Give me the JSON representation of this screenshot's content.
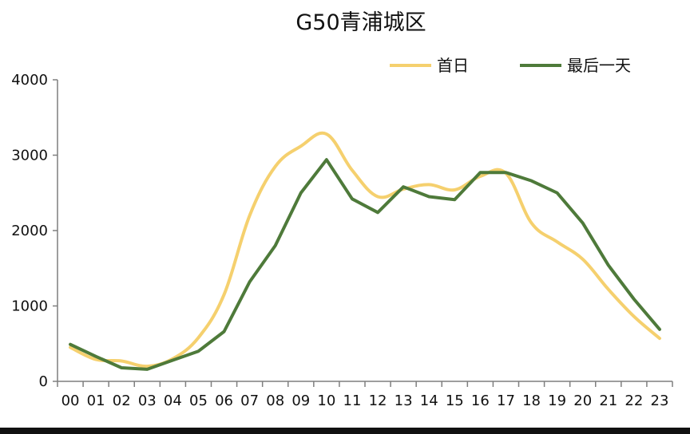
{
  "chart_data": {
    "type": "line",
    "title": "G50青浦城区",
    "xlabel": "",
    "ylabel": "",
    "ylim": [
      0,
      4000
    ],
    "yticks": [
      0,
      1000,
      2000,
      3000,
      4000
    ],
    "ytick_labels": [
      "0",
      "1000",
      "2000",
      "3000",
      "4000"
    ],
    "categories": [
      "00",
      "01",
      "02",
      "03",
      "04",
      "05",
      "06",
      "07",
      "08",
      "09",
      "10",
      "11",
      "12",
      "13",
      "14",
      "15",
      "16",
      "17",
      "18",
      "19",
      "20",
      "21",
      "22",
      "23"
    ],
    "grid": false,
    "legend_position": "top-right",
    "series": [
      {
        "name": "首日",
        "color": "#f5d06e",
        "smooth": true,
        "values": [
          450,
          290,
          270,
          200,
          300,
          580,
          1150,
          2200,
          2850,
          3120,
          3280,
          2800,
          2450,
          2550,
          2610,
          2540,
          2720,
          2760,
          2100,
          1850,
          1620,
          1220,
          860,
          570
        ]
      },
      {
        "name": "最后一天",
        "color": "#4e7a3a",
        "smooth": false,
        "values": [
          490,
          330,
          180,
          160,
          280,
          400,
          660,
          1320,
          1800,
          2500,
          2940,
          2420,
          2240,
          2580,
          2450,
          2410,
          2770,
          2770,
          2660,
          2500,
          2100,
          1540,
          1090,
          690
        ]
      }
    ]
  }
}
